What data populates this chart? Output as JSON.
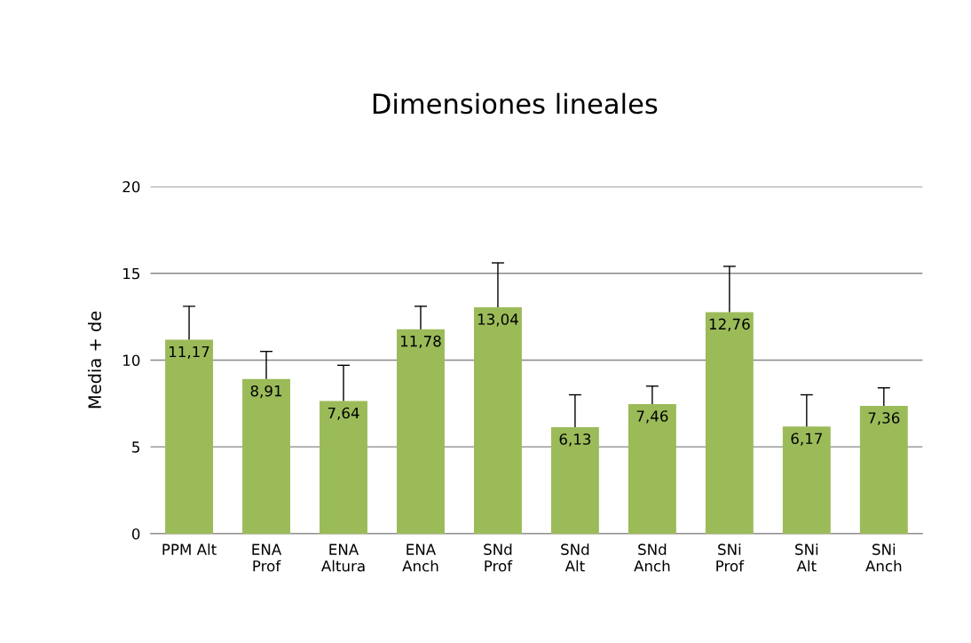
{
  "chart_data": {
    "type": "bar",
    "title": "Dimensiones lineales",
    "ylabel": "Media + de",
    "categories": [
      "PPM Alt",
      "ENA\nProf",
      "ENA\nAltura",
      "ENA\nAnch",
      "SNd\nProf",
      "SNd\nAlt",
      "SNd\nAnch",
      "SNi\nProf",
      "SNi\nAlt",
      "SNi\nAnch"
    ],
    "values": [
      11.17,
      8.91,
      7.64,
      11.78,
      13.04,
      6.13,
      7.46,
      12.76,
      6.17,
      7.36
    ],
    "value_labels": [
      "11,17",
      "8,91",
      "7,64",
      "11,78",
      "13,04",
      "6,13",
      "7,46",
      "12,76",
      "6,17",
      "7,36"
    ],
    "errors": [
      [
        11.17,
        13.1
      ],
      [
        8.91,
        10.5
      ],
      [
        7.64,
        9.7
      ],
      [
        11.78,
        13.1
      ],
      [
        13.04,
        15.6
      ],
      [
        6.13,
        8.0
      ],
      [
        7.46,
        8.5
      ],
      [
        12.76,
        15.4
      ],
      [
        6.17,
        8.0
      ],
      [
        7.36,
        8.4
      ]
    ],
    "color": "#9bbb59",
    "ylim": [
      0,
      20
    ],
    "yticks": [
      0,
      5,
      10,
      15,
      20
    ],
    "grid": "y",
    "legend": false
  }
}
